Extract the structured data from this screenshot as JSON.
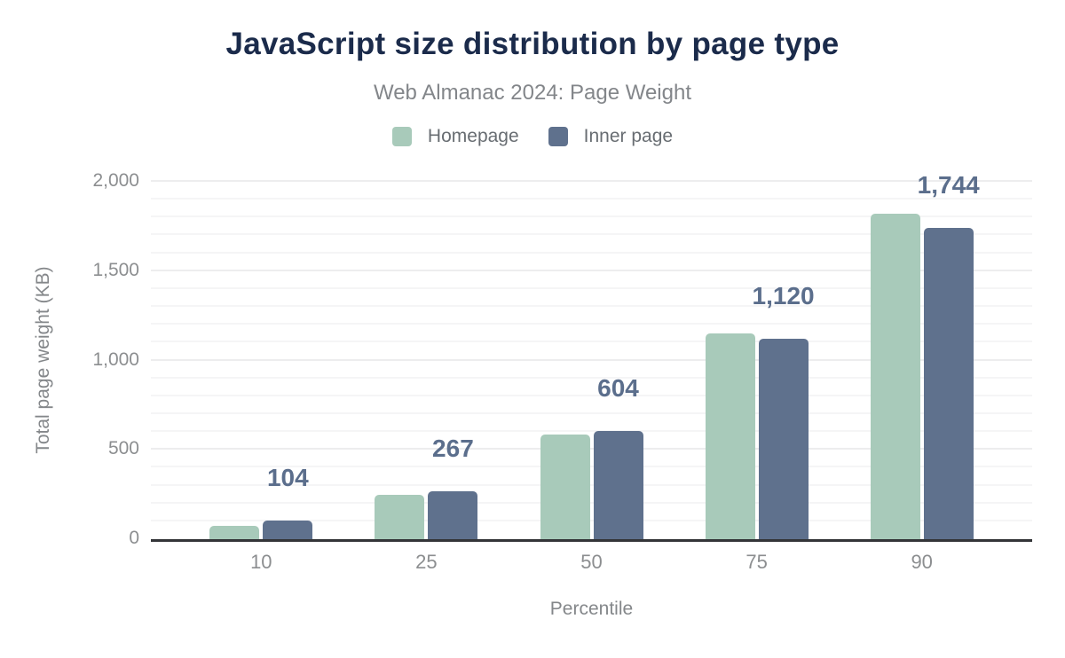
{
  "header": {
    "title": "JavaScript size distribution by page type",
    "subtitle": "Web Almanac 2024: Page Weight"
  },
  "colors": {
    "background": "#ffffff",
    "title_text": "#1b2b4b",
    "subtitle_text": "#83868a",
    "legend_text": "#686d72",
    "tick_text": "#8c8e90",
    "axis_title_text": "#84878a",
    "bar_value_label": "#5b6e8c",
    "axis_line": "#333538",
    "grid_minor": "#f5f5f6",
    "grid_major": "#ededee",
    "homepage_series": "#a8caba",
    "inner_page_series": "#5f718d"
  },
  "chart_data": {
    "type": "bar",
    "title": "JavaScript size distribution by page type",
    "subtitle": "Web Almanac 2024: Page Weight",
    "categories": [
      "10",
      "25",
      "50",
      "75",
      "90"
    ],
    "series": [
      {
        "name": "Homepage",
        "color": "#a8caba",
        "values": [
          76,
          250,
          585,
          1150,
          1820
        ]
      },
      {
        "name": "Inner page",
        "color": "#5f718d",
        "values": [
          104,
          267,
          604,
          1120,
          1744
        ]
      }
    ],
    "bar_labels": {
      "labeled_series": "Inner page",
      "values": [
        "104",
        "267",
        "604",
        "1,120",
        "1,744"
      ]
    },
    "xlabel": "Percentile",
    "ylabel": "Total page weight (KB)",
    "ylim": [
      0,
      2000
    ],
    "yticks": [
      {
        "value": 0,
        "label": "0"
      },
      {
        "value": 500,
        "label": "500"
      },
      {
        "value": 1000,
        "label": "1,000"
      },
      {
        "value": 1500,
        "label": "1,500"
      },
      {
        "value": 2000,
        "label": "2,000"
      }
    ],
    "grid": {
      "minor_step": 100,
      "major_step": 500,
      "grid_on": true
    },
    "legend_position": "top"
  }
}
